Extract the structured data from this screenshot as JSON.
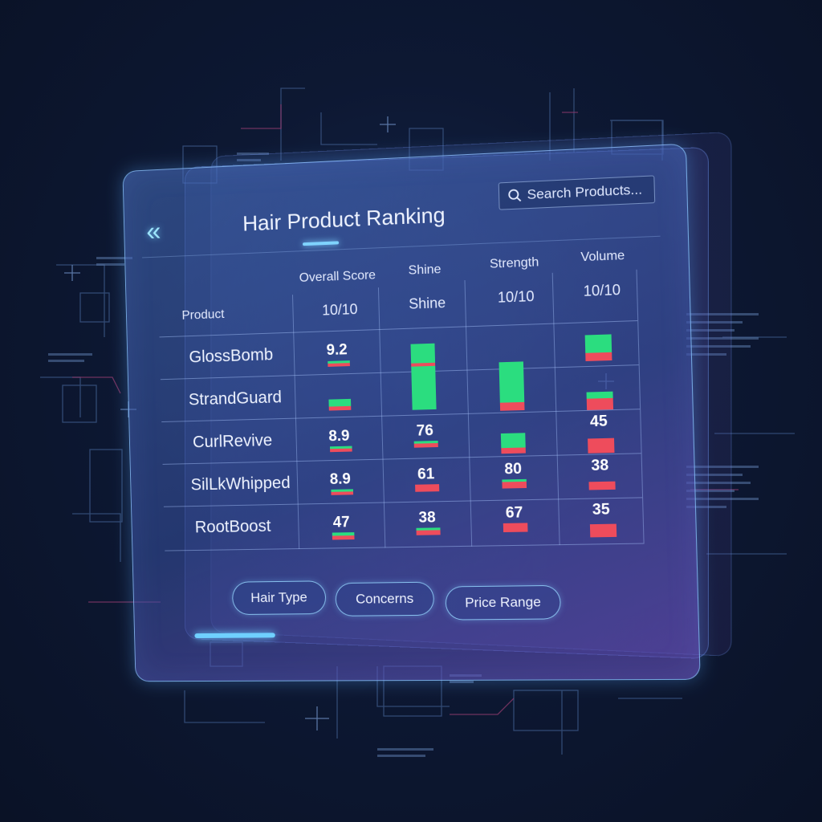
{
  "app": {
    "title": "Hair Product Ranking",
    "search_placeholder": "Search Products..."
  },
  "table": {
    "product_header": "Product",
    "columns": [
      {
        "label": "Overall Score",
        "sub": "10/10"
      },
      {
        "label": "Shine",
        "sub": "Shine"
      },
      {
        "label": "Strength",
        "sub": "10/10"
      },
      {
        "label": "Volume",
        "sub": "10/10"
      }
    ],
    "rows": [
      {
        "name": "GlossBomb",
        "overall": "9.2",
        "shine": "",
        "strength": "",
        "volume": ""
      },
      {
        "name": "StrandGuard",
        "overall": "",
        "shine": "",
        "strength": "",
        "volume": ""
      },
      {
        "name": "CurlRevive",
        "overall": "8.9",
        "shine": "76",
        "strength": "",
        "volume": "45"
      },
      {
        "name": "SilLkWhipped",
        "overall": "8.9",
        "shine": "61",
        "strength": "80",
        "volume": "38"
      },
      {
        "name": "RootBoost",
        "overall": "47",
        "shine": "38",
        "strength": "67",
        "volume": "35"
      }
    ]
  },
  "filters": {
    "hair_type": "Hair Type",
    "concerns": "Concerns",
    "price_range": "Price Range"
  },
  "colors": {
    "bar_green": "#2bdd7f",
    "bar_red": "#ee4c5c",
    "accent": "#7fd3ff"
  }
}
